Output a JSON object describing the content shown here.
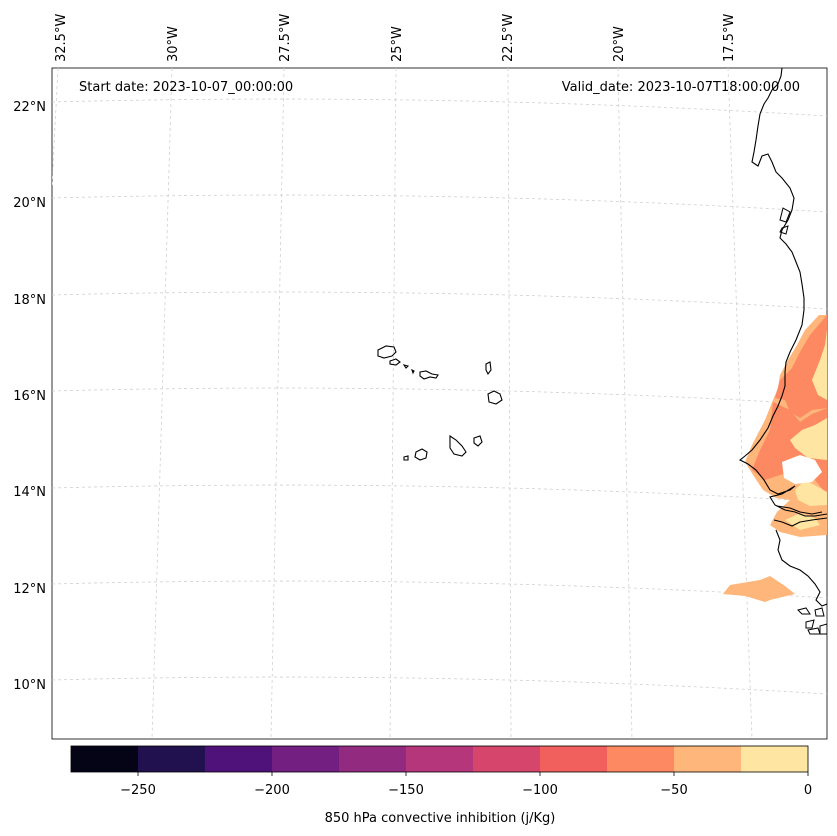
{
  "header": {
    "start_date": "Start date: 2023-10-07_00:00:00",
    "valid_date": "Valid_date: 2023-10-07T18:00:00.00"
  },
  "map": {
    "projection": "lambert-conformal",
    "gridlines": "dashed-light-gray",
    "lon_labels": [
      "32.5°W",
      "30°W",
      "27.5°W",
      "25°W",
      "22.5°W",
      "20°W",
      "17.5°W"
    ],
    "lat_labels": [
      "22°N",
      "20°N",
      "18°N",
      "16°N",
      "14°N",
      "12°N",
      "10°N"
    ],
    "features": [
      "Cape Verde islands",
      "West African coastline (Mauritania, Senegal, Gambia, Guinea-Bissau)"
    ]
  },
  "colorbar": {
    "label": "850 hPa convective inhibition (j/Kg)",
    "tick_labels": [
      "−250",
      "−200",
      "−150",
      "−100",
      "−50",
      "0"
    ],
    "levels": [
      -275,
      -250,
      -225,
      -200,
      -175,
      -150,
      -125,
      -100,
      -75,
      -50,
      -25,
      0
    ],
    "colors": [
      "#050417",
      "#21114e",
      "#4f127b",
      "#721f81",
      "#922a7f",
      "#b5367a",
      "#d6456c",
      "#f1605d",
      "#fc8961",
      "#feb67b",
      "#fee5a1"
    ]
  }
}
